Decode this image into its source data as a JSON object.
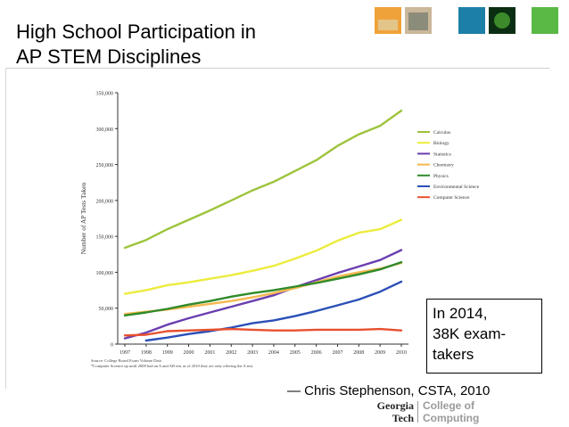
{
  "slide": {
    "title_line1": "High School Participation in",
    "title_line2": "AP STEM Disciplines",
    "callout_line1": "In 2014,",
    "callout_line2": "38K exam-",
    "callout_line3": "takers",
    "attribution": "— Chris Stephenson, CSTA, 2010",
    "logo_line1": "Georgia",
    "logo_line2": "Tech",
    "logo_line3": "College of",
    "logo_line4": "Computing"
  },
  "colors": {
    "calculus": "#9dc43c",
    "biology": "#ecec3e",
    "statistics": "#6a3fb0",
    "chemistry": "#f5b850",
    "physics": "#2f8a2a",
    "environmental_science": "#2b4fb8",
    "computer_science": "#e8502e"
  },
  "chart_data": {
    "type": "line",
    "ylabel": "Number of AP Tests Taken",
    "ylim": [
      0,
      350000
    ],
    "yticks": [
      "0",
      "50,000",
      "100,000",
      "150,000",
      "200,000",
      "250,000",
      "300,000",
      "350,000"
    ],
    "ytick_values": [
      0,
      50000,
      100000,
      150000,
      200000,
      250000,
      300000,
      350000
    ],
    "x": [
      "1997",
      "1998",
      "1999",
      "2000",
      "2001",
      "2002",
      "2003",
      "2004",
      "2005",
      "2006",
      "2007",
      "2008",
      "2009",
      "2010"
    ],
    "legend_position": "right",
    "series": [
      {
        "name": "Calculus",
        "color_key": "calculus",
        "values": [
          134000,
          145000,
          160000,
          173000,
          186000,
          200000,
          214000,
          226000,
          241000,
          256000,
          276000,
          292000,
          304000,
          325000
        ]
      },
      {
        "name": "Biology",
        "color_key": "biology",
        "values": [
          70000,
          75000,
          82000,
          86000,
          91000,
          96000,
          102000,
          109000,
          119000,
          130000,
          144000,
          155000,
          160000,
          173000
        ]
      },
      {
        "name": "Statistics",
        "color_key": "statistics",
        "values": [
          8000,
          16000,
          27000,
          36000,
          44000,
          52000,
          60000,
          68000,
          79000,
          89000,
          99000,
          108000,
          117000,
          131000
        ]
      },
      {
        "name": "Chemistry",
        "color_key": "chemistry",
        "values": [
          42000,
          45000,
          48000,
          52000,
          56000,
          60000,
          65000,
          71000,
          78000,
          86000,
          94000,
          100000,
          105000,
          113000
        ]
      },
      {
        "name": "Physics",
        "color_key": "physics",
        "values": [
          40000,
          44000,
          49000,
          55000,
          60000,
          66000,
          71000,
          75000,
          80000,
          85000,
          91000,
          97000,
          104000,
          114000
        ]
      },
      {
        "name": "Environmental Science",
        "color_key": "environmental_science",
        "values": [
          null,
          5000,
          9000,
          14000,
          18000,
          23000,
          29000,
          33000,
          39000,
          46000,
          54000,
          62000,
          73000,
          87000
        ]
      },
      {
        "name": "Computer Science",
        "color_key": "computer_science",
        "values": [
          12000,
          13000,
          18000,
          19000,
          20000,
          21000,
          20000,
          19000,
          19000,
          20000,
          20000,
          20000,
          21000,
          19000
        ]
      }
    ],
    "source_line1": "Source: College Board Exam Volume Data",
    "source_line2": "*Computer Science up until 2008 had an A and AB test as of 2010 they are only offering the A test."
  }
}
